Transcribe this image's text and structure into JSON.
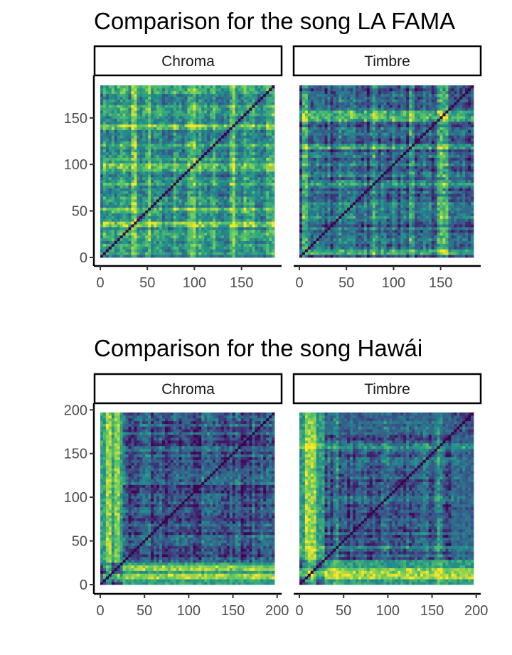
{
  "chart_data": [
    {
      "type": "heatmap",
      "title": "Comparison for the song LA FAMA",
      "xlabel": "",
      "ylabel": "",
      "xlim": [
        0,
        185
      ],
      "ylim": [
        0,
        185
      ],
      "x_ticks": [
        0,
        50,
        100,
        150
      ],
      "y_ticks": [
        0,
        50,
        100,
        150
      ],
      "colormap": [
        "#440154",
        "#3b528b",
        "#21908c",
        "#5dc963",
        "#fde725"
      ],
      "panels": [
        {
          "name": "Chroma",
          "n": 185,
          "base": 0.55,
          "lines": [
            {
              "at": 35,
              "strength": 0.35
            },
            {
              "at": 50,
              "strength": 0.2
            },
            {
              "at": 97,
              "strength": 0.25
            },
            {
              "at": 140,
              "strength": 0.25
            },
            {
              "at": 155,
              "strength": 0.18
            }
          ],
          "blocks": []
        },
        {
          "name": "Timbre",
          "n": 185,
          "base": 0.32,
          "lines": [
            {
              "at": 5,
              "strength": 0.35
            },
            {
              "at": 45,
              "strength": 0.2
            },
            {
              "at": 80,
              "strength": 0.3
            },
            {
              "at": 120,
              "strength": 0.2
            },
            {
              "at": 150,
              "strength": 0.4
            },
            {
              "at": 155,
              "strength": 0.35
            }
          ],
          "blocks": []
        }
      ]
    },
    {
      "type": "heatmap",
      "title": "Comparison for the song Hawái",
      "xlabel": "",
      "ylabel": "",
      "xlim": [
        0,
        197
      ],
      "ylim": [
        0,
        197
      ],
      "x_ticks": [
        0,
        50,
        100,
        150,
        200
      ],
      "y_ticks": [
        0,
        50,
        100,
        150,
        200
      ],
      "colormap": [
        "#440154",
        "#3b528b",
        "#21908c",
        "#5dc963",
        "#fde725"
      ],
      "panels": [
        {
          "name": "Chroma",
          "n": 197,
          "base": 0.25,
          "lines": [
            {
              "at": 10,
              "strength": 0.35
            },
            {
              "at": 20,
              "strength": 0.3
            }
          ],
          "blocks": [
            {
              "from": 0,
              "to": 25,
              "level": 0.58
            }
          ]
        },
        {
          "name": "Timbre",
          "n": 197,
          "base": 0.3,
          "lines": [
            {
              "at": 8,
              "strength": 0.4
            },
            {
              "at": 15,
              "strength": 0.35
            },
            {
              "at": 40,
              "strength": 0.2
            },
            {
              "at": 160,
              "strength": 0.2
            }
          ],
          "blocks": [
            {
              "from": 0,
              "to": 30,
              "level": 0.55
            },
            {
              "from": 170,
              "to": 197,
              "level": 0.3
            }
          ]
        }
      ]
    }
  ]
}
